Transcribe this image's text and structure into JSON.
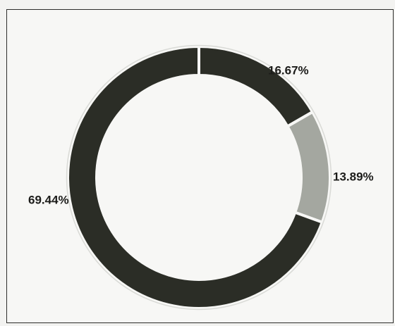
{
  "chart_data": {
    "type": "pie",
    "variant": "donut",
    "title": "",
    "slices": [
      {
        "value": 16.67,
        "label": "16.67%",
        "color": "#2b2d26"
      },
      {
        "value": 13.89,
        "label": "13.89%",
        "color": "#a4a7a0"
      },
      {
        "value": 69.44,
        "label": "69.44%",
        "color": "#2b2d26"
      }
    ],
    "start_angle_deg": 0,
    "direction": "clockwise",
    "legend": "none"
  }
}
